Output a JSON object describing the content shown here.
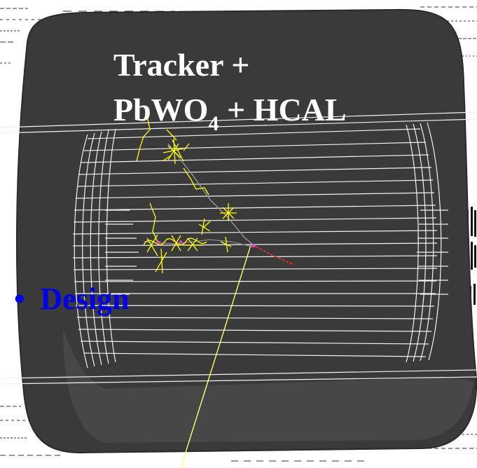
{
  "slide": {
    "title_line1": "Tracker +",
    "title_line2_prefix": "PbWO",
    "title_line2_subscript": "4",
    "title_line2_suffix": " + HCAL",
    "bullet_symbol": "•",
    "bullet_text": "Design"
  },
  "colors": {
    "detector_body": "#3a3a3a",
    "detector_edge": "#5e5e5e",
    "wireframe": "#f2f2f2",
    "shower": "#ffff00",
    "trajectory": "#ffff66",
    "red_track": "#ff2a2a",
    "magenta_vertex": "#ff33cc",
    "title_text": "#ffffff",
    "bullet_text": "#0000ee"
  },
  "icons": {
    "shower_cluster": "particle-shower-icon"
  }
}
